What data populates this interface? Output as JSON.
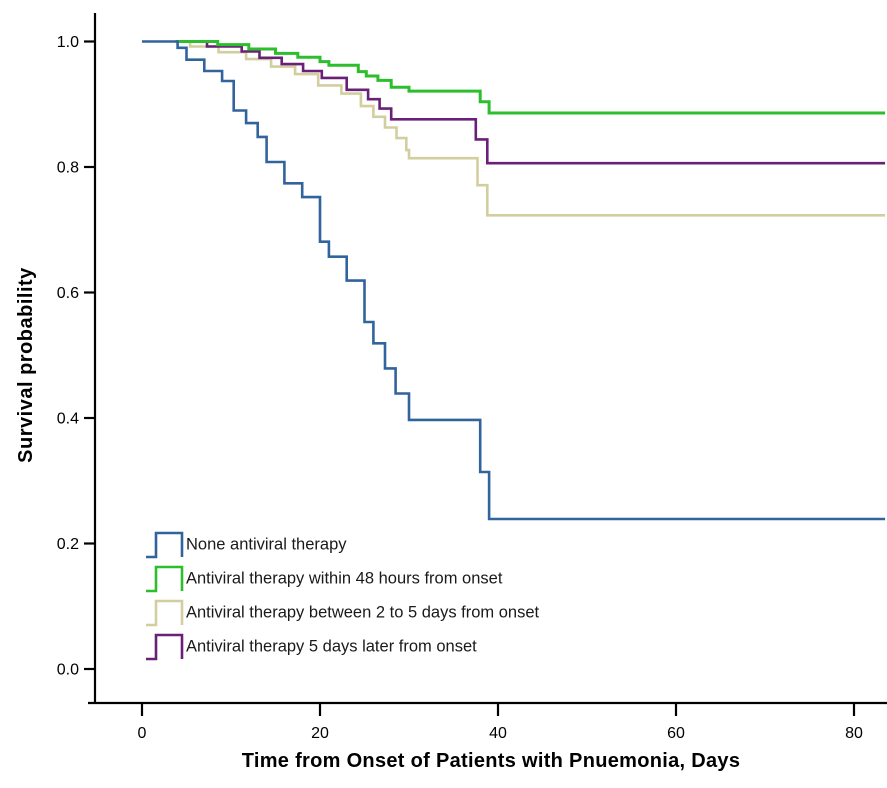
{
  "figure": {
    "background_color": "#ffffff",
    "axis_color": "#000000",
    "tick_label_color": "#000000",
    "legend_text_color": "#1a1a1a"
  },
  "chart_data": {
    "type": "line",
    "style": "step-after",
    "title": "",
    "xlabel": "Time from Onset of Patients with Pnuemonia, Days",
    "ylabel": "Survival probability",
    "xlim": [
      0,
      83.5
    ],
    "ylim": [
      0.0,
      1.02
    ],
    "grid": false,
    "legend_position": "inside-lower-left",
    "x_ticks": [
      {
        "value": 0,
        "label": "0"
      },
      {
        "value": 20,
        "label": "20"
      },
      {
        "value": 40,
        "label": "40"
      },
      {
        "value": 60,
        "label": "60"
      },
      {
        "value": 80,
        "label": "80"
      }
    ],
    "y_ticks": [
      {
        "value": 0.0,
        "label": "0.0"
      },
      {
        "value": 0.2,
        "label": "0.2"
      },
      {
        "value": 0.4,
        "label": "0.4"
      },
      {
        "value": 0.6,
        "label": "0.6"
      },
      {
        "value": 0.8,
        "label": "0.8"
      },
      {
        "value": 1.0,
        "label": "1.0"
      }
    ],
    "x_end": 83.5,
    "series": [
      {
        "name": "None antiviral therapy",
        "color": "#31639C",
        "points": [
          [
            0,
            1.0
          ],
          [
            4,
            0.99
          ],
          [
            5,
            0.971
          ],
          [
            7,
            0.953
          ],
          [
            9,
            0.937
          ],
          [
            10.3,
            0.89
          ],
          [
            11.7,
            0.87
          ],
          [
            13,
            0.848
          ],
          [
            14,
            0.808
          ],
          [
            16,
            0.774
          ],
          [
            18,
            0.752
          ],
          [
            20,
            0.681
          ],
          [
            21,
            0.657
          ],
          [
            23,
            0.619
          ],
          [
            25,
            0.553
          ],
          [
            26,
            0.519
          ],
          [
            27.3,
            0.479
          ],
          [
            28.5,
            0.439
          ],
          [
            30,
            0.397
          ],
          [
            38,
            0.314
          ],
          [
            39,
            0.239
          ]
        ]
      },
      {
        "name": "Antiviral therapy within 48 hours from onset",
        "color": "#2DBE2D",
        "points": [
          [
            3.8,
            1.0
          ],
          [
            8.5,
            0.995
          ],
          [
            12,
            0.988
          ],
          [
            15,
            0.981
          ],
          [
            17.5,
            0.975
          ],
          [
            20,
            0.968
          ],
          [
            21,
            0.962
          ],
          [
            24.3,
            0.952
          ],
          [
            25.2,
            0.945
          ],
          [
            26.5,
            0.938
          ],
          [
            28,
            0.927
          ],
          [
            30,
            0.921
          ],
          [
            38,
            0.904
          ],
          [
            39,
            0.886
          ]
        ]
      },
      {
        "name": "Antiviral therapy between 2 to 5 days from onset",
        "color": "#D2CE9F",
        "points": [
          [
            3.8,
            1.0
          ],
          [
            5.4,
            0.992
          ],
          [
            8.6,
            0.983
          ],
          [
            11.7,
            0.972
          ],
          [
            14.5,
            0.96
          ],
          [
            17.2,
            0.948
          ],
          [
            19.8,
            0.93
          ],
          [
            22.4,
            0.917
          ],
          [
            24.6,
            0.897
          ],
          [
            26,
            0.88
          ],
          [
            27.3,
            0.863
          ],
          [
            28.6,
            0.846
          ],
          [
            29.7,
            0.827
          ],
          [
            30,
            0.814
          ],
          [
            37.7,
            0.771
          ],
          [
            38.8,
            0.723
          ]
        ]
      },
      {
        "name": "Antiviral therapy 5 days later from onset",
        "color": "#6B2077",
        "points": [
          [
            3.8,
            1.0
          ],
          [
            7.3,
            0.992
          ],
          [
            11.2,
            0.984
          ],
          [
            13.2,
            0.974
          ],
          [
            15.7,
            0.964
          ],
          [
            18.1,
            0.953
          ],
          [
            20.2,
            0.942
          ],
          [
            23,
            0.923
          ],
          [
            25.4,
            0.908
          ],
          [
            26.7,
            0.893
          ],
          [
            28,
            0.876
          ],
          [
            37.5,
            0.844
          ],
          [
            38.8,
            0.806
          ]
        ]
      }
    ]
  }
}
